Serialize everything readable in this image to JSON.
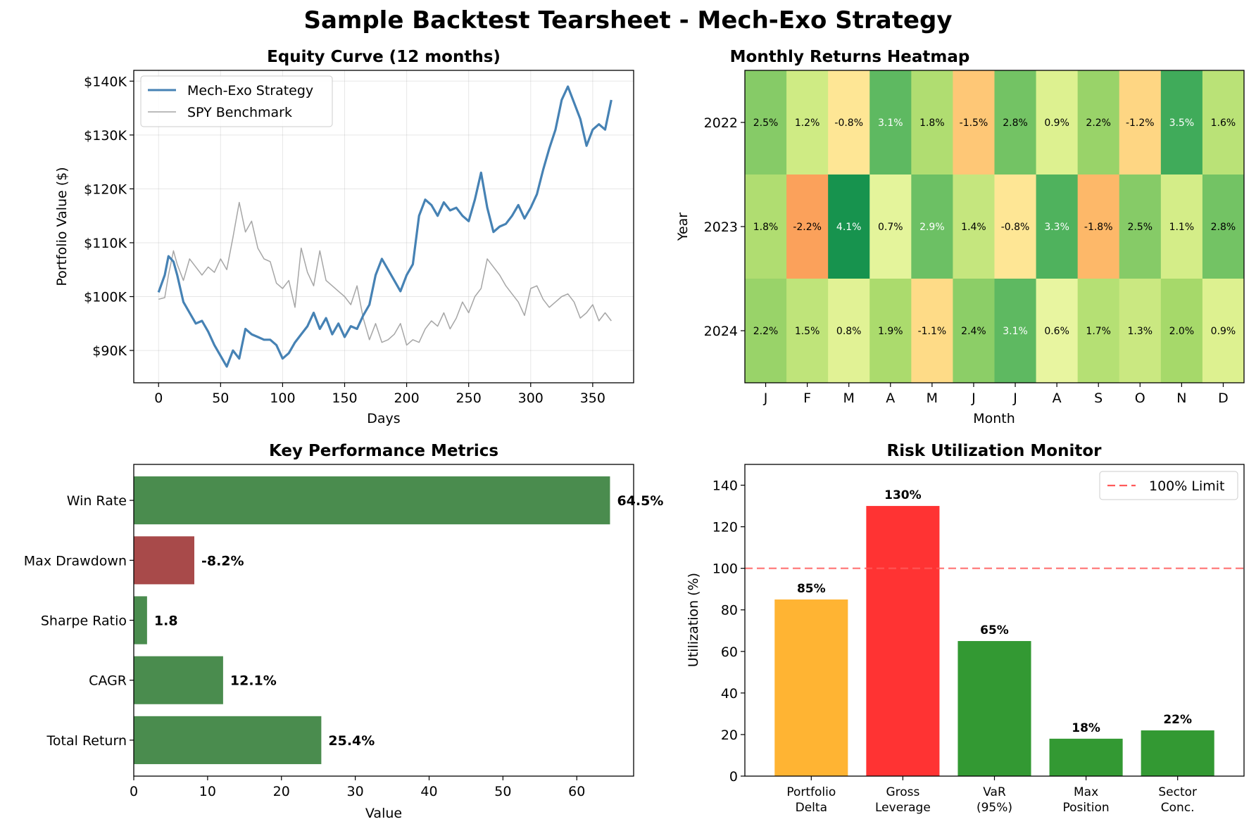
{
  "figure": {
    "title": "Sample Backtest Tearsheet - Mech-Exo Strategy"
  },
  "chart_data": [
    {
      "type": "line",
      "title": "Equity Curve (12 months)",
      "xlabel": "Days",
      "ylabel": "Portfolio Value ($)",
      "xlim": [
        -20,
        383
      ],
      "ylim": [
        84000,
        142000
      ],
      "xticks": [
        0,
        50,
        100,
        150,
        200,
        250,
        300,
        350
      ],
      "yticks": [
        90000,
        100000,
        110000,
        120000,
        130000,
        140000
      ],
      "ytick_labels": [
        "$90K",
        "$100K",
        "$110K",
        "$120K",
        "$130K",
        "$140K"
      ],
      "grid": true,
      "legend_position": "upper-left",
      "series": [
        {
          "name": "Mech-Exo Strategy",
          "color": "#4682b4",
          "x": [
            0,
            5,
            8,
            12,
            15,
            20,
            25,
            30,
            35,
            40,
            45,
            50,
            55,
            60,
            65,
            70,
            75,
            80,
            85,
            90,
            95,
            100,
            105,
            110,
            115,
            120,
            125,
            130,
            135,
            140,
            145,
            150,
            155,
            160,
            165,
            170,
            175,
            180,
            185,
            190,
            195,
            200,
            205,
            210,
            215,
            220,
            225,
            230,
            235,
            240,
            245,
            250,
            255,
            260,
            265,
            270,
            275,
            280,
            285,
            290,
            295,
            300,
            305,
            310,
            315,
            320,
            325,
            330,
            335,
            340,
            345,
            350,
            355,
            360,
            365
          ],
          "values": [
            100800,
            104000,
            107500,
            106500,
            104000,
            99000,
            97000,
            95000,
            95500,
            93500,
            91000,
            89000,
            87000,
            90000,
            88500,
            94000,
            93000,
            92500,
            92000,
            92000,
            91000,
            88500,
            89500,
            91500,
            93000,
            94500,
            97000,
            94000,
            96000,
            93000,
            95000,
            92500,
            94500,
            94000,
            96500,
            98500,
            104000,
            107000,
            105000,
            103000,
            101000,
            104000,
            106000,
            115000,
            118000,
            117000,
            115000,
            117500,
            116000,
            116500,
            115000,
            114000,
            118000,
            123000,
            116500,
            112000,
            113000,
            113500,
            115000,
            117000,
            114500,
            116500,
            119000,
            123500,
            127500,
            131000,
            136500,
            139000,
            136000,
            133000,
            128000,
            131000,
            132000,
            131000,
            136500
          ]
        },
        {
          "name": "SPY Benchmark",
          "color": "#a6a6a6",
          "x": [
            0,
            5,
            8,
            12,
            15,
            20,
            25,
            30,
            35,
            40,
            45,
            50,
            55,
            60,
            65,
            70,
            75,
            80,
            85,
            90,
            95,
            100,
            105,
            110,
            115,
            120,
            125,
            130,
            135,
            140,
            145,
            150,
            155,
            160,
            165,
            170,
            175,
            180,
            185,
            190,
            195,
            200,
            205,
            210,
            215,
            220,
            225,
            230,
            235,
            240,
            245,
            250,
            255,
            260,
            265,
            270,
            275,
            280,
            285,
            290,
            295,
            300,
            305,
            310,
            315,
            320,
            325,
            330,
            335,
            340,
            345,
            350,
            355,
            360,
            365
          ],
          "values": [
            99500,
            99800,
            104000,
            108500,
            106000,
            103000,
            107000,
            105500,
            104000,
            105500,
            104500,
            107000,
            105000,
            111000,
            117500,
            112000,
            114000,
            109000,
            107000,
            106500,
            102500,
            101500,
            103000,
            98000,
            109000,
            104500,
            102000,
            108500,
            103000,
            102000,
            101000,
            100000,
            98500,
            102000,
            96000,
            92000,
            95000,
            91500,
            92000,
            93000,
            95000,
            91000,
            92000,
            91500,
            94000,
            95500,
            94500,
            97000,
            94000,
            96000,
            99000,
            97000,
            100000,
            101500,
            107000,
            105500,
            104000,
            102000,
            100500,
            99000,
            96500,
            101500,
            102000,
            99500,
            98000,
            99000,
            100000,
            100500,
            99000,
            96000,
            97000,
            98500,
            95500,
            97000,
            95500
          ]
        }
      ]
    },
    {
      "type": "heatmap",
      "title": "Monthly Returns Heatmap",
      "xlabel": "Month",
      "ylabel": "Year",
      "x": [
        "J",
        "F",
        "M",
        "A",
        "M",
        "J",
        "J",
        "A",
        "S",
        "O",
        "N",
        "D"
      ],
      "y": [
        "2022",
        "2023",
        "2024"
      ],
      "values": [
        [
          2.5,
          1.2,
          -0.8,
          3.1,
          1.8,
          -1.5,
          2.8,
          0.9,
          2.2,
          -1.2,
          3.5,
          1.6
        ],
        [
          1.8,
          -2.2,
          4.1,
          0.7,
          2.9,
          1.4,
          -0.8,
          3.3,
          -1.8,
          2.5,
          1.1,
          2.8
        ],
        [
          2.2,
          1.5,
          0.8,
          1.9,
          -1.1,
          2.4,
          3.1,
          0.6,
          1.7,
          1.3,
          2.0,
          0.9
        ]
      ],
      "labels": [
        [
          "2.5%",
          "1.2%",
          "-0.8%",
          "3.1%",
          "1.8%",
          "-1.5%",
          "2.8%",
          "0.9%",
          "2.2%",
          "-1.2%",
          "3.5%",
          "1.6%"
        ],
        [
          "1.8%",
          "-2.2%",
          "4.1%",
          "0.7%",
          "2.9%",
          "1.4%",
          "-0.8%",
          "3.3%",
          "-1.8%",
          "2.5%",
          "1.1%",
          "2.8%"
        ],
        [
          "2.2%",
          "1.5%",
          "0.8%",
          "1.9%",
          "-1.1%",
          "2.4%",
          "3.1%",
          "0.6%",
          "1.7%",
          "1.3%",
          "2.0%",
          "0.9%"
        ]
      ],
      "colormap": "RdYlGn",
      "vmin": -5,
      "vmax": 5
    },
    {
      "type": "bar",
      "orientation": "horizontal",
      "title": "Key Performance Metrics",
      "xlabel": "Value",
      "ylabel": "",
      "categories": [
        "Total Return",
        "CAGR",
        "Sharpe Ratio",
        "Max Drawdown",
        "Win Rate"
      ],
      "values": [
        25.4,
        12.1,
        1.8,
        8.2,
        64.5
      ],
      "value_labels": [
        "25.4%",
        "12.1%",
        "1.8",
        "-8.2%",
        "64.5%"
      ],
      "colors": [
        "#4a8c4e",
        "#4a8c4e",
        "#4a8c4e",
        "#a84a4a",
        "#4a8c4e"
      ],
      "xlim": [
        0,
        67.7
      ],
      "xticks": [
        0,
        10,
        20,
        30,
        40,
        50,
        60
      ]
    },
    {
      "type": "bar",
      "title": "Risk Utilization Monitor",
      "xlabel": "",
      "ylabel": "Utilization (%)",
      "categories": [
        "Portfolio\nDelta",
        "Gross\nLeverage",
        "VaR\n(95%)",
        "Max\nPosition",
        "Sector\nConc."
      ],
      "values": [
        85,
        130,
        65,
        18,
        22
      ],
      "value_labels": [
        "85%",
        "130%",
        "65%",
        "18%",
        "22%"
      ],
      "colors": [
        "#ffb433",
        "#ff3333",
        "#339933",
        "#339933",
        "#339933"
      ],
      "ylim": [
        0,
        150
      ],
      "yticks": [
        0,
        20,
        40,
        60,
        80,
        100,
        120,
        140
      ],
      "reference_line": {
        "value": 100,
        "label": "100% Limit",
        "color": "#ff5a5a"
      },
      "legend_position": "upper-right"
    }
  ]
}
